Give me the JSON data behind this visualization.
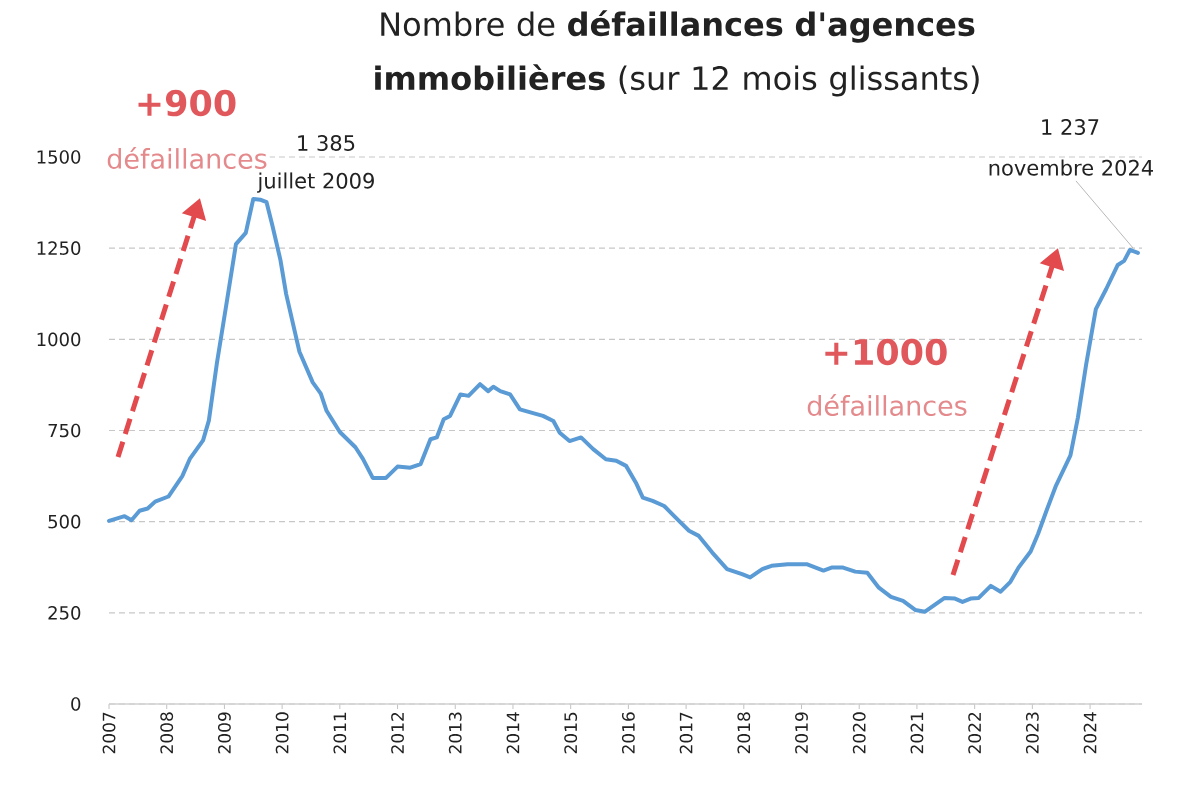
{
  "chart_data": {
    "type": "line",
    "title": "Nombre de **défaillances d'agences immobilières** (sur 12 mois glissants)",
    "x": [
      2007.0,
      2007.27,
      2007.39,
      2007.53,
      2007.67,
      2007.8,
      2008.03,
      2008.27,
      2008.4,
      2008.63,
      2008.73,
      2008.87,
      2009.03,
      2009.2,
      2009.37,
      2009.5,
      2009.62,
      2009.73,
      2009.83,
      2009.97,
      2010.07,
      2010.3,
      2010.53,
      2010.67,
      2010.77,
      2011.0,
      2011.27,
      2011.4,
      2011.57,
      2011.8,
      2012.0,
      2012.22,
      2012.4,
      2012.57,
      2012.68,
      2012.8,
      2012.91,
      2013.09,
      2013.23,
      2013.43,
      2013.57,
      2013.66,
      2013.78,
      2013.95,
      2014.12,
      2014.41,
      2014.52,
      2014.7,
      2014.81,
      2014.98,
      2015.18,
      2015.39,
      2015.61,
      2015.79,
      2015.96,
      2016.13,
      2016.25,
      2016.42,
      2016.62,
      2016.82,
      2017.05,
      2017.22,
      2017.45,
      2017.71,
      2017.97,
      2018.11,
      2018.32,
      2018.48,
      2018.76,
      2019.1,
      2019.38,
      2019.52,
      2019.72,
      2019.93,
      2020.14,
      2020.34,
      2020.55,
      2020.76,
      2020.97,
      2021.14,
      2021.31,
      2021.48,
      2021.66,
      2021.79,
      2021.93,
      2022.07,
      2022.28,
      2022.45,
      2022.62,
      2022.76,
      2022.97,
      2023.1,
      2023.24,
      2023.41,
      2023.66,
      2023.79,
      2023.93,
      2024.1,
      2024.28,
      2024.48,
      2024.59,
      2024.69,
      2024.83
    ],
    "series": [
      {
        "color": "#5B9BD5",
        "values": [
          502,
          515,
          504,
          530,
          536,
          555,
          569,
          625,
          672,
          723,
          777,
          935,
          1092,
          1261,
          1292,
          1385,
          1383,
          1376,
          1313,
          1218,
          1124,
          966,
          882,
          851,
          804,
          746,
          704,
          672,
          620,
          620,
          651,
          648,
          658,
          726,
          731,
          781,
          790,
          849,
          845,
          877,
          858,
          870,
          858,
          849,
          808,
          795,
          790,
          776,
          744,
          721,
          731,
          699,
          671,
          667,
          653,
          607,
          566,
          557,
          543,
          511,
          475,
          461,
          416,
          370,
          356,
          347,
          370,
          379,
          383,
          383,
          366,
          374,
          374,
          363,
          360,
          319,
          294,
          283,
          258,
          253,
          272,
          291,
          289,
          280,
          289,
          291,
          324,
          308,
          335,
          374,
          418,
          467,
          528,
          599,
          682,
          786,
          929,
          1083,
          1138,
          1204,
          1215,
          1245,
          1237
        ]
      }
    ],
    "xlim": [
      2007,
      2024.9
    ],
    "ylim": [
      0,
      1500
    ],
    "xticks": [
      2007,
      2008,
      2009,
      2010,
      2011,
      2012,
      2013,
      2014,
      2015,
      2016,
      2017,
      2018,
      2019,
      2020,
      2021,
      2022,
      2023,
      2024
    ],
    "yticks": [
      0,
      250,
      500,
      750,
      1000,
      1250,
      1500
    ],
    "grid": "y",
    "line_style": "solid",
    "annotations": [
      "+900",
      "défaillances",
      "1 385",
      {
        "text": "juillet 2009",
        "x": 2009.5,
        "y": 1385
      },
      "+1000",
      "défaillances",
      "1 237",
      {
        "text": "novembre 2024",
        "x": 2024.83,
        "y": 1237
      }
    ]
  }
}
